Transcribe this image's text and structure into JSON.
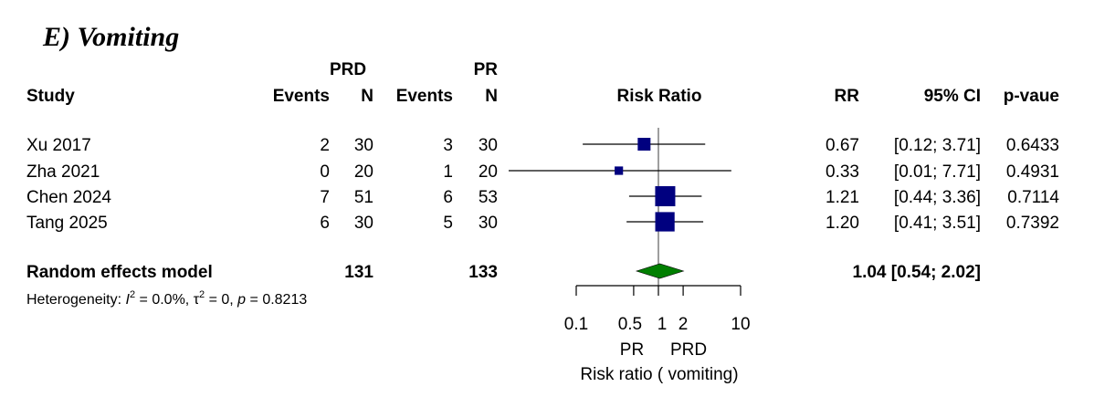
{
  "chart_data": {
    "type": "forest",
    "title": "E) Vomiting",
    "headers": {
      "group1": "PRD",
      "group2": "PR",
      "study": "Study",
      "events": "Events",
      "n": "N",
      "effect": "Risk Ratio",
      "rr": "RR",
      "ci": "95% CI",
      "p": "p-vaue"
    },
    "studies": [
      {
        "name": "Xu 2017",
        "events1": "2",
        "n1": "30",
        "events2": "3",
        "n2": "30",
        "rr": 0.67,
        "lower": 0.12,
        "upper": 3.71,
        "rr_text": "0.67",
        "ci_text": "[0.12; 3.71]",
        "p": "0.6433",
        "weight": 0.5
      },
      {
        "name": "Zha 2021",
        "events1": "0",
        "n1": "20",
        "events2": "1",
        "n2": "20",
        "rr": 0.33,
        "lower": 0.01,
        "upper": 7.71,
        "rr_text": "0.33",
        "ci_text": "[0.01; 7.71]",
        "p": "0.4931",
        "weight": 0.2
      },
      {
        "name": "Chen 2024",
        "events1": "7",
        "n1": "51",
        "events2": "6",
        "n2": "53",
        "rr": 1.21,
        "lower": 0.44,
        "upper": 3.36,
        "rr_text": "1.21",
        "ci_text": "[0.44; 3.36]",
        "p": "0.7114",
        "weight": 1.0
      },
      {
        "name": "Tang 2025",
        "events1": "6",
        "n1": "30",
        "events2": "5",
        "n2": "30",
        "rr": 1.2,
        "lower": 0.41,
        "upper": 3.51,
        "rr_text": "1.20",
        "ci_text": "[0.41; 3.51]",
        "p": "0.7392",
        "weight": 0.95
      }
    ],
    "pooled": {
      "label": "Random effects model",
      "n1": "131",
      "n2": "133",
      "rr": 1.04,
      "lower": 0.54,
      "upper": 2.02,
      "text": "1.04 [0.54; 2.02]"
    },
    "heterogeneity": {
      "prefix": "Heterogeneity: ",
      "i2_symbol": "I",
      "i2_value": " = 0.0%, ",
      "tau_symbol": "τ",
      "tau_value": " = 0, ",
      "p_symbol": "p",
      "p_value": " = 0.8213"
    },
    "x_axis": {
      "scale": "log",
      "range": [
        0.1,
        10
      ],
      "ticks": [
        0.1,
        0.5,
        1,
        2,
        10
      ],
      "tick_labels": [
        "0.1",
        "0.5",
        "1",
        "2",
        "10"
      ],
      "reference": 1,
      "label_left": "PR",
      "label_right": "PRD",
      "xlabel": "Risk ratio ( vomiting)"
    },
    "colors": {
      "square": "#00007f",
      "diamond": "#007f00",
      "line": "#000000",
      "reference": "#7f7f7f"
    }
  }
}
